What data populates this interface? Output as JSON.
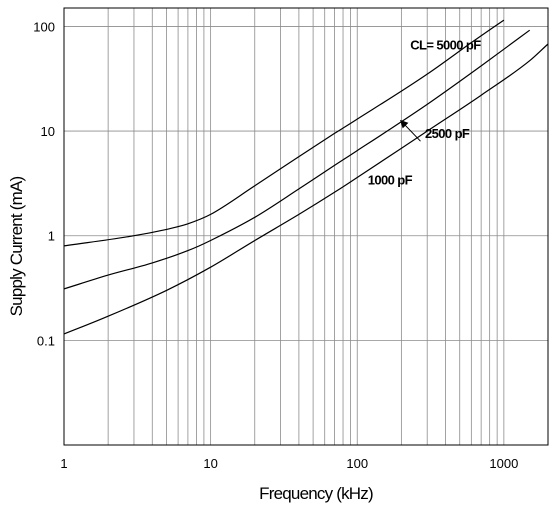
{
  "chart_data": {
    "type": "line",
    "title": "",
    "xlabel": "Frequency (kHz)",
    "ylabel": "Supply Current (mA)",
    "xscale": "log",
    "yscale": "log",
    "xlim": [
      1,
      2000
    ],
    "ylim": [
      0.01,
      150
    ],
    "grid": true,
    "x_tick_labels": [
      "1",
      "10",
      "100",
      "1000"
    ],
    "x_tick_values": [
      1,
      10,
      100,
      1000
    ],
    "y_tick_labels": [
      "0.1",
      "1",
      "10",
      "100"
    ],
    "y_tick_values": [
      0.1,
      1,
      10,
      100
    ],
    "series": [
      {
        "name": "CL= 5000 pF",
        "x": [
          1,
          3,
          5,
          7,
          10,
          20,
          40,
          70,
          100,
          300,
          600,
          1000
        ],
        "y": [
          0.8,
          1.0,
          1.15,
          1.3,
          1.6,
          3.0,
          5.7,
          9.5,
          13,
          35,
          70,
          115
        ]
      },
      {
        "name": "2500 pF",
        "x": [
          1,
          2,
          4,
          7,
          10,
          20,
          40,
          70,
          100,
          300,
          700,
          1500
        ],
        "y": [
          0.31,
          0.42,
          0.55,
          0.72,
          0.9,
          1.5,
          2.8,
          4.7,
          6.5,
          18,
          42,
          92
        ]
      },
      {
        "name": "1000 pF",
        "x": [
          1,
          2,
          5,
          10,
          20,
          40,
          70,
          100,
          300,
          700,
          1500,
          2000
        ],
        "y": [
          0.115,
          0.17,
          0.3,
          0.5,
          0.9,
          1.6,
          2.6,
          3.6,
          10,
          22,
          47,
          68
        ]
      }
    ],
    "annotations": [
      {
        "text": "CL= 5000 pF",
        "x": 230,
        "y": 60
      },
      {
        "text": "2500 pF",
        "x": 290,
        "y": 8.6
      },
      {
        "text": "1000 pF",
        "x": 118,
        "y": 3.1
      }
    ]
  }
}
